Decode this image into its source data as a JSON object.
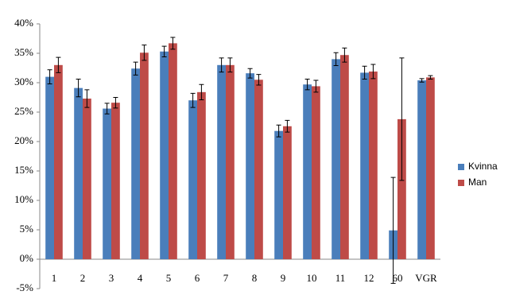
{
  "chart_data": {
    "type": "bar",
    "categories": [
      "1",
      "2",
      "3",
      "4",
      "5",
      "6",
      "7",
      "8",
      "9",
      "10",
      "11",
      "12",
      "60",
      "VGR"
    ],
    "series": [
      {
        "name": "Kvinna",
        "color": "#4a7ebb",
        "values": [
          31.0,
          29.1,
          25.6,
          32.4,
          35.3,
          27.0,
          33.0,
          31.6,
          21.8,
          29.7,
          34.0,
          31.7,
          4.9,
          30.4
        ],
        "errors": [
          1.2,
          1.5,
          0.9,
          1.1,
          0.9,
          1.2,
          1.2,
          0.8,
          1.0,
          0.9,
          1.1,
          1.1,
          9.0,
          0.3
        ]
      },
      {
        "name": "Man",
        "color": "#be4b48",
        "values": [
          33.0,
          27.3,
          26.6,
          35.1,
          36.7,
          28.4,
          33.0,
          30.5,
          22.6,
          29.4,
          34.7,
          31.9,
          23.8,
          30.9
        ],
        "errors": [
          1.3,
          1.5,
          0.9,
          1.3,
          1.0,
          1.3,
          1.2,
          0.9,
          1.0,
          1.0,
          1.2,
          1.2,
          10.4,
          0.3
        ]
      }
    ],
    "ylim": [
      -5,
      40
    ],
    "yticks": [
      {
        "value": -5,
        "label": "-5%"
      },
      {
        "value": 0,
        "label": "0%"
      },
      {
        "value": 5,
        "label": "5%"
      },
      {
        "value": 10,
        "label": "10%"
      },
      {
        "value": 15,
        "label": "15%"
      },
      {
        "value": 20,
        "label": "20%"
      },
      {
        "value": 25,
        "label": "25%"
      },
      {
        "value": 30,
        "label": "30%"
      },
      {
        "value": 35,
        "label": "35%"
      },
      {
        "value": 40,
        "label": "40%"
      }
    ],
    "grid": false,
    "legend": "right"
  }
}
